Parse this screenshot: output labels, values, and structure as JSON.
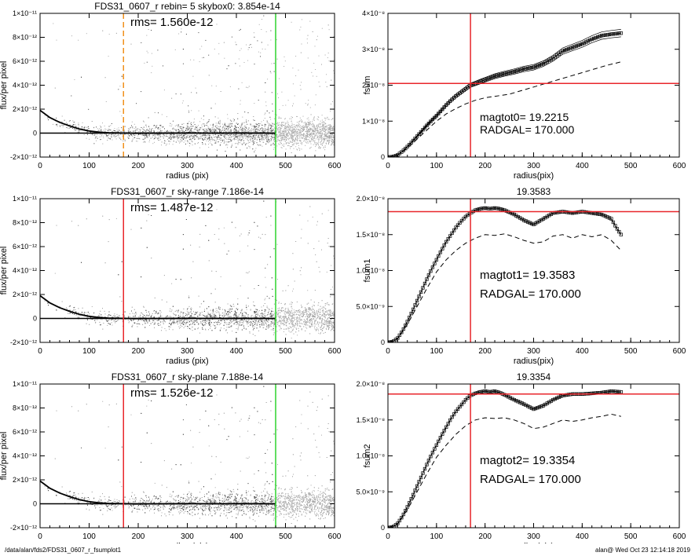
{
  "footer": {
    "path": "/data/alan/fds2/FDS31_0607_r_fsumplot1",
    "stamp": "alan@  Wed Oct 23 12:14:18 2019"
  },
  "colors": {
    "scatter": "#a8a8a8",
    "profile": "#000000",
    "red": "#e8262b",
    "green": "#2fd42f",
    "orange": "#f0901c",
    "axis": "#000000"
  },
  "chart_data": [
    {
      "type": "scatter",
      "title": "FDS31_0607_r rebin= 5   skybox0:  3.854e-14",
      "annotation": "rms= 1.560e-12",
      "xlabel": "radius (pix)",
      "ylabel": "flux/per pixel",
      "xlim": [
        0,
        600
      ],
      "ylim": [
        -2e-12,
        1e-11
      ],
      "xticks": [
        0,
        100,
        200,
        300,
        400,
        500,
        600
      ],
      "yticks": [
        -2e-12,
        0,
        2e-12,
        4e-12,
        6e-12,
        8e-12,
        1e-11
      ],
      "yticklabels": [
        "-2×10⁻¹²",
        "0",
        "2×10⁻¹²",
        "4×10⁻¹²",
        "6×10⁻¹²",
        "8×10⁻¹²",
        "1×10⁻¹¹"
      ],
      "vlines": [
        {
          "x": 170,
          "color": "orange",
          "dash": true
        },
        {
          "x": 480,
          "color": "green",
          "dash": false
        }
      ],
      "profile": {
        "x": [
          0,
          10,
          20,
          40,
          60,
          80,
          100,
          120,
          140,
          160,
          180,
          200,
          250,
          300,
          350,
          400,
          480
        ],
        "y": [
          1.9e-12,
          1.6e-12,
          1.3e-12,
          9e-13,
          6e-13,
          3.5e-13,
          1.8e-13,
          8e-14,
          3e-14,
          1e-14,
          0,
          -1e-14,
          0,
          1e-14,
          0,
          1e-14,
          0
        ]
      }
    },
    {
      "type": "line",
      "ylabel": "fsum",
      "xlabel": "radius(pix)",
      "xlim": [
        0,
        600
      ],
      "ylim": [
        0,
        4e-08
      ],
      "xticks": [
        0,
        100,
        200,
        300,
        400,
        500,
        600
      ],
      "yticks": [
        0,
        1e-08,
        2e-08,
        3e-08,
        4e-08
      ],
      "yticklabels": [
        "0",
        "1×10⁻⁸",
        "2×10⁻⁸",
        "3×10⁻⁸",
        "4×10⁻⁸"
      ],
      "hline": 2.05e-08,
      "vline": 170,
      "text1": "magtot0=       19.2215",
      "text2": "RADGAL=       170.000",
      "series": [
        {
          "style": "squares",
          "x": [
            0,
            10,
            20,
            30,
            40,
            50,
            60,
            70,
            80,
            90,
            100,
            110,
            120,
            130,
            140,
            150,
            160,
            170,
            180,
            190,
            200,
            220,
            240,
            260,
            280,
            300,
            320,
            340,
            360,
            380,
            400,
            420,
            440,
            460,
            480
          ],
          "y": [
            0,
            1e-10,
            6e-10,
            1.6e-09,
            2.9e-09,
            4.3e-09,
            5.8e-09,
            7.3e-09,
            8.8e-09,
            1.02e-08,
            1.15e-08,
            1.3e-08,
            1.45e-08,
            1.58e-08,
            1.7e-08,
            1.8e-08,
            1.9e-08,
            2e-08,
            2.05e-08,
            2.1e-08,
            2.15e-08,
            2.25e-08,
            2.32e-08,
            2.38e-08,
            2.45e-08,
            2.5e-08,
            2.6e-08,
            2.75e-08,
            2.95e-08,
            3.05e-08,
            3.15e-08,
            3.28e-08,
            3.38e-08,
            3.42e-08,
            3.45e-08
          ]
        },
        {
          "style": "dashed",
          "x": [
            0,
            20,
            40,
            60,
            80,
            100,
            120,
            140,
            160,
            180,
            200,
            250,
            300,
            350,
            400,
            450,
            480
          ],
          "y": [
            0,
            5e-10,
            2.5e-09,
            5e-09,
            7.5e-09,
            1e-08,
            1.2e-08,
            1.35e-08,
            1.48e-08,
            1.58e-08,
            1.65e-08,
            1.75e-08,
            1.95e-08,
            2.15e-08,
            2.35e-08,
            2.55e-08,
            2.65e-08
          ]
        }
      ]
    },
    {
      "type": "scatter",
      "title": "FDS31_0607_r sky-range  7.186e-14",
      "annotation": "rms= 1.487e-12",
      "xlabel": "radius (pix)",
      "ylabel": "flux/per pixel",
      "xlim": [
        0,
        600
      ],
      "ylim": [
        -2e-12,
        1e-11
      ],
      "xticks": [
        0,
        100,
        200,
        300,
        400,
        500,
        600
      ],
      "yticks": [
        -2e-12,
        0,
        2e-12,
        4e-12,
        6e-12,
        8e-12,
        1e-11
      ],
      "yticklabels": [
        "-2×10⁻¹²",
        "0",
        "2×10⁻¹²",
        "4×10⁻¹²",
        "6×10⁻¹²",
        "8×10⁻¹²",
        "1×10⁻¹¹"
      ],
      "vlines": [
        {
          "x": 170,
          "color": "red",
          "dash": false
        },
        {
          "x": 480,
          "color": "green",
          "dash": false
        }
      ],
      "profile": {
        "x": [
          0,
          10,
          20,
          40,
          60,
          80,
          100,
          120,
          140,
          160,
          180,
          200,
          250,
          300,
          350,
          400,
          480
        ],
        "y": [
          1.9e-12,
          1.6e-12,
          1.3e-12,
          9e-13,
          6e-13,
          3.5e-13,
          1.8e-13,
          8e-14,
          3e-14,
          1e-14,
          0,
          -1e-14,
          0,
          1e-14,
          0,
          1e-14,
          0
        ]
      }
    },
    {
      "type": "line",
      "title": "19.3583",
      "ylabel": "fsum1",
      "xlabel": "radius(pix)",
      "xlim": [
        0,
        600
      ],
      "ylim": [
        0,
        2e-08
      ],
      "xticks": [
        0,
        100,
        200,
        300,
        400,
        500,
        600
      ],
      "yticks": [
        0,
        5e-09,
        1e-08,
        1.5e-08,
        2e-08
      ],
      "yticklabels": [
        "0",
        "5.0×10⁻⁹",
        "1.0×10⁻⁸",
        "1.5×10⁻⁸",
        "2.0×10⁻⁸"
      ],
      "hline": 1.82e-08,
      "vline": 170,
      "text1": "magtot1=      19.3583",
      "text2": "RADGAL=       170.000",
      "series": [
        {
          "style": "squares",
          "x": [
            0,
            10,
            20,
            30,
            40,
            50,
            60,
            70,
            80,
            90,
            100,
            110,
            120,
            130,
            140,
            150,
            160,
            170,
            180,
            190,
            200,
            210,
            220,
            230,
            240,
            260,
            280,
            300,
            320,
            340,
            360,
            380,
            400,
            420,
            440,
            460,
            470,
            480
          ],
          "y": [
            0,
            1e-10,
            6e-10,
            1.6e-09,
            2.9e-09,
            4.3e-09,
            5.8e-09,
            7.3e-09,
            8.8e-09,
            1.02e-08,
            1.15e-08,
            1.28e-08,
            1.4e-08,
            1.5e-08,
            1.6e-08,
            1.68e-08,
            1.75e-08,
            1.8e-08,
            1.84e-08,
            1.86e-08,
            1.87e-08,
            1.86e-08,
            1.87e-08,
            1.86e-08,
            1.84e-08,
            1.78e-08,
            1.7e-08,
            1.64e-08,
            1.72e-08,
            1.8e-08,
            1.82e-08,
            1.8e-08,
            1.82e-08,
            1.8e-08,
            1.78e-08,
            1.72e-08,
            1.6e-08,
            1.5e-08
          ]
        },
        {
          "style": "dashed",
          "x": [
            0,
            20,
            40,
            60,
            80,
            100,
            120,
            140,
            160,
            180,
            200,
            220,
            240,
            260,
            280,
            300,
            320,
            340,
            360,
            380,
            400,
            420,
            440,
            460,
            480
          ],
          "y": [
            0,
            5e-10,
            2.5e-09,
            5e-09,
            7.5e-09,
            9.8e-09,
            1.15e-08,
            1.28e-08,
            1.38e-08,
            1.45e-08,
            1.5e-08,
            1.49e-08,
            1.51e-08,
            1.47e-08,
            1.42e-08,
            1.38e-08,
            1.4e-08,
            1.48e-08,
            1.5e-08,
            1.45e-08,
            1.5e-08,
            1.47e-08,
            1.5e-08,
            1.42e-08,
            1.28e-08
          ]
        }
      ]
    },
    {
      "type": "scatter",
      "title": "FDS31_0607_r sky-plane  7.188e-14",
      "annotation": "rms= 1.526e-12",
      "xlabel": "radius (pix)",
      "ylabel": "flux/per pixel",
      "xlim": [
        0,
        600
      ],
      "ylim": [
        -2e-12,
        1e-11
      ],
      "xticks": [
        0,
        100,
        200,
        300,
        400,
        500,
        600
      ],
      "yticks": [
        -2e-12,
        0,
        2e-12,
        4e-12,
        6e-12,
        8e-12,
        1e-11
      ],
      "yticklabels": [
        "-2×10⁻¹²",
        "0",
        "2×10⁻¹²",
        "4×10⁻¹²",
        "6×10⁻¹²",
        "8×10⁻¹²",
        "1×10⁻¹¹"
      ],
      "vlines": [
        {
          "x": 170,
          "color": "red",
          "dash": false
        },
        {
          "x": 480,
          "color": "green",
          "dash": false
        }
      ],
      "profile": {
        "x": [
          0,
          10,
          20,
          40,
          60,
          80,
          100,
          120,
          140,
          160,
          180,
          200,
          250,
          300,
          350,
          400,
          480
        ],
        "y": [
          1.9e-12,
          1.6e-12,
          1.3e-12,
          9e-13,
          6e-13,
          3.5e-13,
          1.8e-13,
          8e-14,
          3e-14,
          1e-14,
          0,
          -1e-14,
          0,
          1e-14,
          0,
          1e-14,
          0
        ]
      }
    },
    {
      "type": "line",
      "title": "19.3354",
      "ylabel": "fsum2",
      "xlabel": "radius(pix)",
      "xlim": [
        0,
        600
      ],
      "ylim": [
        0,
        2e-08
      ],
      "xticks": [
        0,
        100,
        200,
        300,
        400,
        500,
        600
      ],
      "yticks": [
        0,
        5e-09,
        1e-08,
        1.5e-08,
        2e-08
      ],
      "yticklabels": [
        "0",
        "5.0×10⁻⁹",
        "1.0×10⁻⁸",
        "1.5×10⁻⁸",
        "2.0×10⁻⁸"
      ],
      "hline": 1.86e-08,
      "vline": 170,
      "text1": "magtot2=      19.3354",
      "text2": "RADGAL=       170.000",
      "series": [
        {
          "style": "squares",
          "x": [
            0,
            10,
            20,
            30,
            40,
            50,
            60,
            70,
            80,
            90,
            100,
            110,
            120,
            130,
            140,
            150,
            160,
            170,
            180,
            190,
            200,
            210,
            220,
            230,
            240,
            260,
            280,
            300,
            320,
            340,
            360,
            380,
            400,
            420,
            440,
            460,
            480
          ],
          "y": [
            0,
            1e-10,
            6e-10,
            1.6e-09,
            2.9e-09,
            4.3e-09,
            5.8e-09,
            7.3e-09,
            8.8e-09,
            1.02e-08,
            1.15e-08,
            1.28e-08,
            1.4e-08,
            1.52e-08,
            1.62e-08,
            1.7e-08,
            1.78e-08,
            1.84e-08,
            1.87e-08,
            1.89e-08,
            1.9e-08,
            1.89e-08,
            1.9e-08,
            1.88e-08,
            1.85e-08,
            1.78e-08,
            1.72e-08,
            1.65e-08,
            1.7e-08,
            1.78e-08,
            1.84e-08,
            1.86e-08,
            1.86e-08,
            1.87e-08,
            1.88e-08,
            1.9e-08,
            1.89e-08
          ]
        },
        {
          "style": "dashed",
          "x": [
            0,
            20,
            40,
            60,
            80,
            100,
            120,
            140,
            160,
            180,
            200,
            220,
            240,
            260,
            280,
            300,
            320,
            340,
            360,
            380,
            400,
            420,
            440,
            460,
            480
          ],
          "y": [
            0,
            5e-10,
            2.5e-09,
            5e-09,
            7.5e-09,
            9.8e-09,
            1.15e-08,
            1.3e-08,
            1.42e-08,
            1.5e-08,
            1.53e-08,
            1.52e-08,
            1.53e-08,
            1.5e-08,
            1.45e-08,
            1.38e-08,
            1.4e-08,
            1.45e-08,
            1.5e-08,
            1.48e-08,
            1.5e-08,
            1.53e-08,
            1.55e-08,
            1.58e-08,
            1.55e-08
          ]
        }
      ]
    }
  ]
}
